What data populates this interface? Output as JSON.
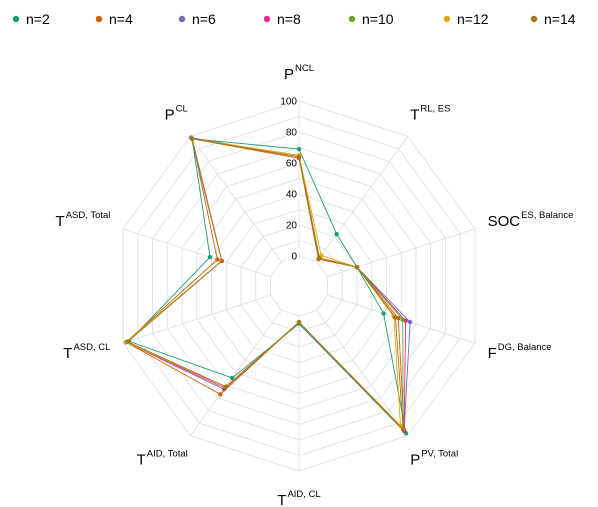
{
  "chart_data": {
    "type": "radar",
    "axes": [
      {
        "main": "P",
        "sup": "NCL"
      },
      {
        "main": "T",
        "sup": "RL, ES"
      },
      {
        "main": "SOC",
        "sup": "ES, Balance"
      },
      {
        "main": "F",
        "sup": "DG, Balance"
      },
      {
        "main": "P",
        "sup": "PV, Total"
      },
      {
        "main": "T",
        "sup": "AID, CL"
      },
      {
        "main": "T",
        "sup": "AID, Total"
      },
      {
        "main": "T",
        "sup": "ASD, CL"
      },
      {
        "main": "T",
        "sup": "ASD, Total"
      },
      {
        "main": "P",
        "sup": "CL"
      }
    ],
    "radial_ticks": [
      "0",
      "20",
      "40",
      "60",
      "80",
      "100"
    ],
    "rlim": [
      0,
      100
    ],
    "grid": true,
    "legend_position": "top",
    "series": [
      {
        "name": "n=2",
        "color": "#1b9e77",
        "values": [
          69,
          22,
          20,
          38,
          98,
          5,
          54,
          96,
          41,
          98
        ]
      },
      {
        "name": "n=4",
        "color": "#d95f02",
        "values": [
          63,
          2,
          20,
          48,
          96,
          4,
          67,
          98,
          36,
          98
        ]
      },
      {
        "name": "n=6",
        "color": "#7570b3",
        "values": [
          64,
          3,
          20,
          56,
          96,
          4,
          63,
          98,
          33,
          99
        ]
      },
      {
        "name": "n=8",
        "color": "#e7298a",
        "values": [
          64,
          3,
          20,
          53,
          96,
          4,
          62,
          98,
          33,
          98
        ]
      },
      {
        "name": "n=10",
        "color": "#66a61e",
        "values": [
          64,
          3,
          20,
          51,
          95,
          4,
          61,
          97,
          33,
          98
        ]
      },
      {
        "name": "n=12",
        "color": "#e6ab02",
        "values": [
          65,
          5,
          20,
          45,
          92,
          4,
          61,
          98,
          33,
          98
        ]
      },
      {
        "name": "n=14",
        "color": "#a6761d",
        "values": [
          64,
          3,
          20,
          46,
          95,
          4,
          61,
          97,
          33,
          98
        ]
      }
    ]
  }
}
